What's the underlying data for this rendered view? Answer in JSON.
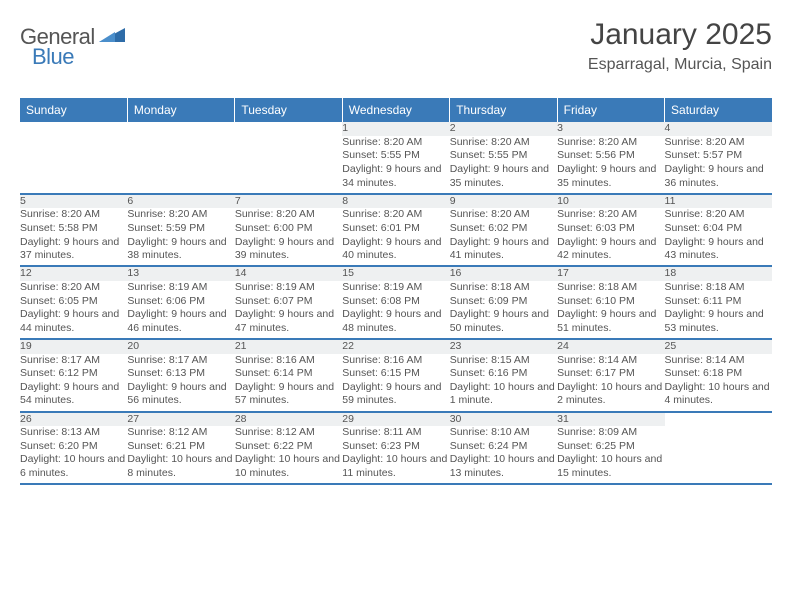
{
  "logo": {
    "word1": "General",
    "word2": "Blue",
    "color_general": "#555555",
    "color_blue": "#3a7ab8"
  },
  "title": "January 2025",
  "location": "Esparragal, Murcia, Spain",
  "weekday_bg": "#3a7ab8",
  "weekday_fg": "#ffffff",
  "daynum_bg": "#eef0f1",
  "border_color": "#3a7ab8",
  "weekdays": [
    "Sunday",
    "Monday",
    "Tuesday",
    "Wednesday",
    "Thursday",
    "Friday",
    "Saturday"
  ],
  "weeks": [
    [
      null,
      null,
      null,
      {
        "n": "1",
        "sr": "Sunrise: 8:20 AM",
        "ss": "Sunset: 5:55 PM",
        "dl": "Daylight: 9 hours and 34 minutes."
      },
      {
        "n": "2",
        "sr": "Sunrise: 8:20 AM",
        "ss": "Sunset: 5:55 PM",
        "dl": "Daylight: 9 hours and 35 minutes."
      },
      {
        "n": "3",
        "sr": "Sunrise: 8:20 AM",
        "ss": "Sunset: 5:56 PM",
        "dl": "Daylight: 9 hours and 35 minutes."
      },
      {
        "n": "4",
        "sr": "Sunrise: 8:20 AM",
        "ss": "Sunset: 5:57 PM",
        "dl": "Daylight: 9 hours and 36 minutes."
      }
    ],
    [
      {
        "n": "5",
        "sr": "Sunrise: 8:20 AM",
        "ss": "Sunset: 5:58 PM",
        "dl": "Daylight: 9 hours and 37 minutes."
      },
      {
        "n": "6",
        "sr": "Sunrise: 8:20 AM",
        "ss": "Sunset: 5:59 PM",
        "dl": "Daylight: 9 hours and 38 minutes."
      },
      {
        "n": "7",
        "sr": "Sunrise: 8:20 AM",
        "ss": "Sunset: 6:00 PM",
        "dl": "Daylight: 9 hours and 39 minutes."
      },
      {
        "n": "8",
        "sr": "Sunrise: 8:20 AM",
        "ss": "Sunset: 6:01 PM",
        "dl": "Daylight: 9 hours and 40 minutes."
      },
      {
        "n": "9",
        "sr": "Sunrise: 8:20 AM",
        "ss": "Sunset: 6:02 PM",
        "dl": "Daylight: 9 hours and 41 minutes."
      },
      {
        "n": "10",
        "sr": "Sunrise: 8:20 AM",
        "ss": "Sunset: 6:03 PM",
        "dl": "Daylight: 9 hours and 42 minutes."
      },
      {
        "n": "11",
        "sr": "Sunrise: 8:20 AM",
        "ss": "Sunset: 6:04 PM",
        "dl": "Daylight: 9 hours and 43 minutes."
      }
    ],
    [
      {
        "n": "12",
        "sr": "Sunrise: 8:20 AM",
        "ss": "Sunset: 6:05 PM",
        "dl": "Daylight: 9 hours and 44 minutes."
      },
      {
        "n": "13",
        "sr": "Sunrise: 8:19 AM",
        "ss": "Sunset: 6:06 PM",
        "dl": "Daylight: 9 hours and 46 minutes."
      },
      {
        "n": "14",
        "sr": "Sunrise: 8:19 AM",
        "ss": "Sunset: 6:07 PM",
        "dl": "Daylight: 9 hours and 47 minutes."
      },
      {
        "n": "15",
        "sr": "Sunrise: 8:19 AM",
        "ss": "Sunset: 6:08 PM",
        "dl": "Daylight: 9 hours and 48 minutes."
      },
      {
        "n": "16",
        "sr": "Sunrise: 8:18 AM",
        "ss": "Sunset: 6:09 PM",
        "dl": "Daylight: 9 hours and 50 minutes."
      },
      {
        "n": "17",
        "sr": "Sunrise: 8:18 AM",
        "ss": "Sunset: 6:10 PM",
        "dl": "Daylight: 9 hours and 51 minutes."
      },
      {
        "n": "18",
        "sr": "Sunrise: 8:18 AM",
        "ss": "Sunset: 6:11 PM",
        "dl": "Daylight: 9 hours and 53 minutes."
      }
    ],
    [
      {
        "n": "19",
        "sr": "Sunrise: 8:17 AM",
        "ss": "Sunset: 6:12 PM",
        "dl": "Daylight: 9 hours and 54 minutes."
      },
      {
        "n": "20",
        "sr": "Sunrise: 8:17 AM",
        "ss": "Sunset: 6:13 PM",
        "dl": "Daylight: 9 hours and 56 minutes."
      },
      {
        "n": "21",
        "sr": "Sunrise: 8:16 AM",
        "ss": "Sunset: 6:14 PM",
        "dl": "Daylight: 9 hours and 57 minutes."
      },
      {
        "n": "22",
        "sr": "Sunrise: 8:16 AM",
        "ss": "Sunset: 6:15 PM",
        "dl": "Daylight: 9 hours and 59 minutes."
      },
      {
        "n": "23",
        "sr": "Sunrise: 8:15 AM",
        "ss": "Sunset: 6:16 PM",
        "dl": "Daylight: 10 hours and 1 minute."
      },
      {
        "n": "24",
        "sr": "Sunrise: 8:14 AM",
        "ss": "Sunset: 6:17 PM",
        "dl": "Daylight: 10 hours and 2 minutes."
      },
      {
        "n": "25",
        "sr": "Sunrise: 8:14 AM",
        "ss": "Sunset: 6:18 PM",
        "dl": "Daylight: 10 hours and 4 minutes."
      }
    ],
    [
      {
        "n": "26",
        "sr": "Sunrise: 8:13 AM",
        "ss": "Sunset: 6:20 PM",
        "dl": "Daylight: 10 hours and 6 minutes."
      },
      {
        "n": "27",
        "sr": "Sunrise: 8:12 AM",
        "ss": "Sunset: 6:21 PM",
        "dl": "Daylight: 10 hours and 8 minutes."
      },
      {
        "n": "28",
        "sr": "Sunrise: 8:12 AM",
        "ss": "Sunset: 6:22 PM",
        "dl": "Daylight: 10 hours and 10 minutes."
      },
      {
        "n": "29",
        "sr": "Sunrise: 8:11 AM",
        "ss": "Sunset: 6:23 PM",
        "dl": "Daylight: 10 hours and 11 minutes."
      },
      {
        "n": "30",
        "sr": "Sunrise: 8:10 AM",
        "ss": "Sunset: 6:24 PM",
        "dl": "Daylight: 10 hours and 13 minutes."
      },
      {
        "n": "31",
        "sr": "Sunrise: 8:09 AM",
        "ss": "Sunset: 6:25 PM",
        "dl": "Daylight: 10 hours and 15 minutes."
      },
      null
    ]
  ]
}
